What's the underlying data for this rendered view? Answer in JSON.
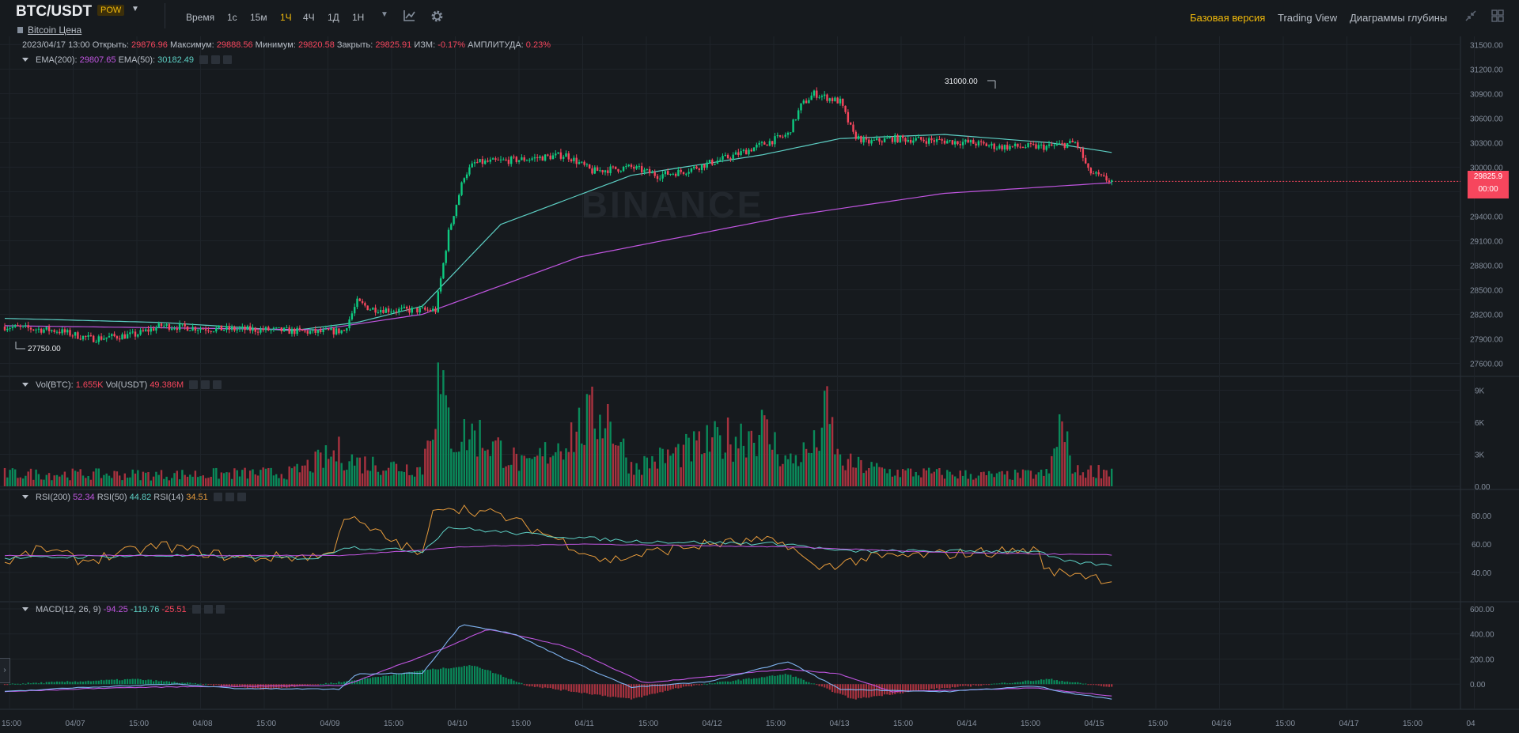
{
  "header": {
    "pair": "BTC/USDT",
    "badge": "POW",
    "subtitle": "Bitcoin Цена",
    "timeframes": [
      "Время",
      "1с",
      "15м",
      "1Ч",
      "4Ч",
      "1Д",
      "1Н"
    ],
    "active_timeframe": "1Ч",
    "links": [
      "Базовая версия",
      "Trading View",
      "Диаграммы глубины"
    ],
    "active_link": "Базовая версия"
  },
  "ohlc": {
    "date": "2023/04/17 13:00",
    "open_label": "Открыть:",
    "open": "29876.96",
    "high_label": "Максимум:",
    "high": "29888.56",
    "low_label": "Минимум:",
    "low": "29820.58",
    "close_label": "Закрыть:",
    "close": "29825.91",
    "change_label": "ИЗМ:",
    "change": "-0.17%",
    "amp_label": "АМПЛИТУДА:",
    "amp": "0.23%"
  },
  "ema": {
    "l1": "EMA(200):",
    "v1": "29807.65",
    "l2": "EMA(50):",
    "v2": "30182.49"
  },
  "vol": {
    "l1": "Vol(BTC):",
    "v1": "1.655K",
    "l2": "Vol(USDT)",
    "v2": "49.386M"
  },
  "rsi": {
    "l1": "RSI(200)",
    "v1": "52.34",
    "l2": "RSI(50)",
    "v2": "44.82",
    "l3": "RSI(14)",
    "v3": "34.51"
  },
  "macd": {
    "l1": "MACD(12, 26, 9)",
    "v1": "-94.25",
    "v2": "-119.76",
    "v3": "-25.51"
  },
  "annotations": {
    "high": "31000.00",
    "low": "27750.00"
  },
  "watermark": "BINANCE",
  "price_tag": {
    "price": "29825.9",
    "countdown": "00:00"
  },
  "colors": {
    "up": "#0ecb81",
    "down": "#f6465d",
    "ema200": "#c055e0",
    "ema50": "#5dcfc4",
    "rsi14": "#e59a3b",
    "accent": "#f0b90b"
  },
  "axes": {
    "price": [
      "31500.00",
      "31200.00",
      "30900.00",
      "30600.00",
      "30300.00",
      "30000.00",
      "29700.00",
      "29400.00",
      "29100.00",
      "28800.00",
      "28500.00",
      "28200.00",
      "27900.00",
      "27600.00"
    ],
    "volume": [
      "9K",
      "6K",
      "3K",
      "0.00"
    ],
    "rsi": [
      "80.00",
      "60.00",
      "40.00"
    ],
    "macd": [
      "600.00",
      "400.00",
      "200.00",
      "0.00"
    ],
    "time": [
      "15:00",
      "04/07",
      "15:00",
      "04/08",
      "15:00",
      "04/09",
      "15:00",
      "04/10",
      "15:00",
      "04/11",
      "15:00",
      "04/12",
      "15:00",
      "04/13",
      "15:00",
      "04/14",
      "15:00",
      "04/15",
      "15:00",
      "04/16",
      "15:00",
      "04/17",
      "15:00",
      "04"
    ]
  },
  "chart_data": {
    "type": "candlestick",
    "price_range": [
      27450,
      31600
    ],
    "volume_range": [
      0,
      10000
    ],
    "rsi_range": [
      20,
      95
    ],
    "macd_range": [
      -200,
      650
    ],
    "close_anchors": [
      [
        0,
        28050
      ],
      [
        20,
        28000
      ],
      [
        33,
        27900
      ],
      [
        50,
        27950
      ],
      [
        60,
        28060
      ],
      [
        80,
        28020
      ],
      [
        100,
        28010
      ],
      [
        120,
        27980
      ],
      [
        130,
        28000
      ],
      [
        135,
        28350
      ],
      [
        140,
        28270
      ],
      [
        150,
        28250
      ],
      [
        160,
        28250
      ],
      [
        165,
        28250
      ],
      [
        170,
        29200
      ],
      [
        176,
        29900
      ],
      [
        180,
        30050
      ],
      [
        200,
        30100
      ],
      [
        215,
        30150
      ],
      [
        225,
        29950
      ],
      [
        240,
        30000
      ],
      [
        250,
        29900
      ],
      [
        260,
        29950
      ],
      [
        270,
        30050
      ],
      [
        280,
        30150
      ],
      [
        300,
        30400
      ],
      [
        305,
        30750
      ],
      [
        310,
        30900
      ],
      [
        320,
        30800
      ],
      [
        325,
        30400
      ],
      [
        330,
        30300
      ],
      [
        340,
        30350
      ],
      [
        360,
        30320
      ],
      [
        370,
        30300
      ],
      [
        380,
        30250
      ],
      [
        400,
        30250
      ],
      [
        410,
        30300
      ],
      [
        412,
        30200
      ],
      [
        415,
        29950
      ],
      [
        420,
        29870
      ],
      [
        424,
        29830
      ]
    ],
    "ema50_anchors": [
      [
        0,
        28150
      ],
      [
        60,
        28100
      ],
      [
        110,
        28000
      ],
      [
        135,
        28100
      ],
      [
        160,
        28300
      ],
      [
        190,
        29300
      ],
      [
        240,
        29900
      ],
      [
        290,
        30150
      ],
      [
        320,
        30350
      ],
      [
        360,
        30400
      ],
      [
        400,
        30300
      ],
      [
        424,
        30180
      ]
    ],
    "ema200_anchors": [
      [
        0,
        28060
      ],
      [
        120,
        28010
      ],
      [
        160,
        28200
      ],
      [
        220,
        28900
      ],
      [
        300,
        29400
      ],
      [
        360,
        29680
      ],
      [
        424,
        29810
      ]
    ],
    "volume_anchors": [
      [
        0,
        1300
      ],
      [
        60,
        1200
      ],
      [
        110,
        1400
      ],
      [
        128,
        3500
      ],
      [
        135,
        2500
      ],
      [
        160,
        1800
      ],
      [
        163,
        6800
      ],
      [
        166,
        10200
      ],
      [
        172,
        5000
      ],
      [
        180,
        5500
      ],
      [
        200,
        2000
      ],
      [
        230,
        8000
      ],
      [
        240,
        2000
      ],
      [
        290,
        6000
      ],
      [
        300,
        2500
      ],
      [
        310,
        4000
      ],
      [
        315,
        7500
      ],
      [
        320,
        2500
      ],
      [
        340,
        1500
      ],
      [
        380,
        1100
      ],
      [
        400,
        1300
      ],
      [
        404,
        6500
      ],
      [
        410,
        1500
      ],
      [
        424,
        1700
      ]
    ],
    "rsi14_anchors": [
      [
        0,
        47
      ],
      [
        15,
        57
      ],
      [
        30,
        48
      ],
      [
        60,
        59
      ],
      [
        90,
        50
      ],
      [
        125,
        52
      ],
      [
        130,
        80
      ],
      [
        140,
        70
      ],
      [
        160,
        52
      ],
      [
        165,
        88
      ],
      [
        175,
        85
      ],
      [
        190,
        80
      ],
      [
        210,
        65
      ],
      [
        230,
        48
      ],
      [
        250,
        55
      ],
      [
        270,
        60
      ],
      [
        290,
        62
      ],
      [
        300,
        60
      ],
      [
        310,
        43
      ],
      [
        330,
        50
      ],
      [
        350,
        52
      ],
      [
        395,
        56
      ],
      [
        400,
        40
      ],
      [
        410,
        40
      ],
      [
        424,
        34.5
      ]
    ],
    "rsi50_anchors": [
      [
        0,
        50
      ],
      [
        60,
        52
      ],
      [
        120,
        50
      ],
      [
        130,
        58
      ],
      [
        160,
        55
      ],
      [
        170,
        72
      ],
      [
        180,
        70
      ],
      [
        200,
        67
      ],
      [
        240,
        62
      ],
      [
        300,
        60
      ],
      [
        320,
        55
      ],
      [
        360,
        55
      ],
      [
        395,
        55
      ],
      [
        405,
        48
      ],
      [
        424,
        44.8
      ]
    ],
    "rsi200_anchors": [
      [
        0,
        52
      ],
      [
        130,
        52
      ],
      [
        175,
        58
      ],
      [
        220,
        60
      ],
      [
        300,
        58
      ],
      [
        360,
        54
      ],
      [
        424,
        52.3
      ]
    ],
    "macd_anchors": [
      [
        0,
        -60
      ],
      [
        30,
        -25
      ],
      [
        65,
        0
      ],
      [
        90,
        -35
      ],
      [
        128,
        -40
      ],
      [
        135,
        80
      ],
      [
        160,
        90
      ],
      [
        175,
        480
      ],
      [
        195,
        400
      ],
      [
        215,
        200
      ],
      [
        240,
        -25
      ],
      [
        270,
        20
      ],
      [
        300,
        180
      ],
      [
        320,
        -40
      ],
      [
        360,
        -60
      ],
      [
        395,
        -15
      ],
      [
        405,
        -60
      ],
      [
        424,
        -120
      ]
    ],
    "signal_anchors": [
      [
        0,
        -60
      ],
      [
        40,
        -30
      ],
      [
        70,
        -20
      ],
      [
        130,
        -10
      ],
      [
        170,
        300
      ],
      [
        185,
        440
      ],
      [
        215,
        300
      ],
      [
        245,
        10
      ],
      [
        300,
        120
      ],
      [
        320,
        80
      ],
      [
        340,
        -60
      ],
      [
        395,
        -30
      ],
      [
        424,
        -95
      ]
    ],
    "hist_anchors": [
      [
        0,
        0
      ],
      [
        50,
        40
      ],
      [
        100,
        -40
      ],
      [
        130,
        20
      ],
      [
        160,
        110
      ],
      [
        180,
        150
      ],
      [
        200,
        -10
      ],
      [
        240,
        -120
      ],
      [
        260,
        -20
      ],
      [
        300,
        80
      ],
      [
        325,
        -120
      ],
      [
        350,
        -50
      ],
      [
        400,
        40
      ],
      [
        424,
        -25
      ]
    ]
  }
}
